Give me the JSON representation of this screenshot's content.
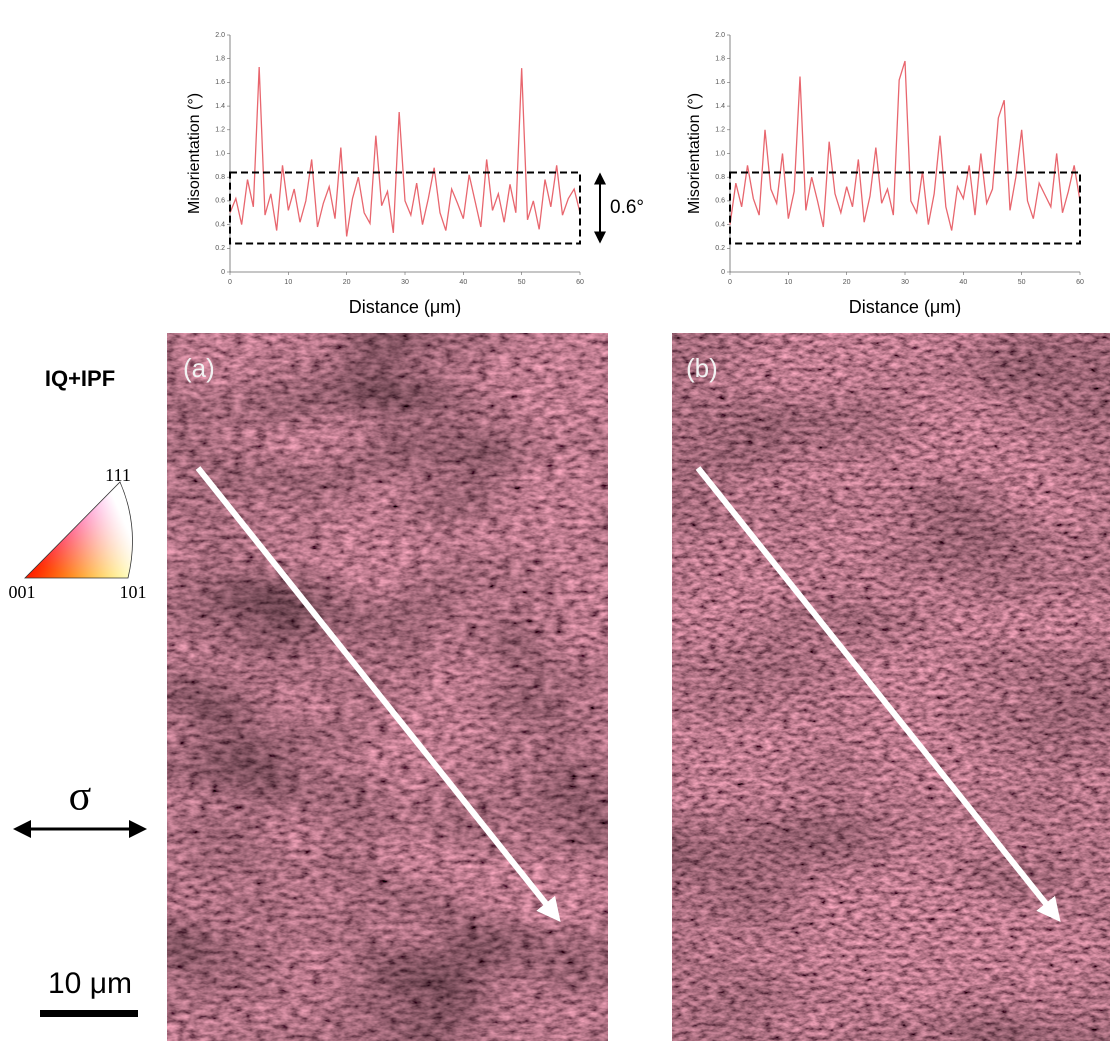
{
  "chart_data": [
    {
      "type": "line",
      "x_label": "Distance (μm)",
      "y_label": "Misorientation (°)",
      "x": [
        0,
        1,
        2,
        3,
        4,
        5,
        6,
        7,
        8,
        9,
        10,
        11,
        12,
        13,
        14,
        15,
        16,
        17,
        18,
        19,
        20,
        21,
        22,
        23,
        24,
        25,
        26,
        27,
        28,
        29,
        30,
        31,
        32,
        33,
        34,
        35,
        36,
        37,
        38,
        39,
        40,
        41,
        42,
        43,
        44,
        45,
        46,
        47,
        48,
        49,
        50,
        51,
        52,
        53,
        54,
        55,
        56,
        57,
        58,
        59,
        60
      ],
      "values": [
        0.5,
        0.62,
        0.4,
        0.78,
        0.55,
        1.73,
        0.48,
        0.66,
        0.35,
        0.9,
        0.52,
        0.7,
        0.42,
        0.6,
        0.95,
        0.38,
        0.58,
        0.72,
        0.45,
        1.05,
        0.3,
        0.62,
        0.8,
        0.5,
        0.41,
        1.15,
        0.56,
        0.68,
        0.33,
        1.35,
        0.6,
        0.48,
        0.75,
        0.4,
        0.62,
        0.88,
        0.5,
        0.35,
        0.7,
        0.58,
        0.45,
        0.82,
        0.6,
        0.38,
        0.95,
        0.52,
        0.66,
        0.42,
        0.74,
        0.5,
        1.72,
        0.44,
        0.6,
        0.36,
        0.78,
        0.55,
        0.9,
        0.48,
        0.62,
        0.7,
        0.5
      ],
      "color": "#e8666e",
      "xlim": [
        0,
        60
      ],
      "xticks": [
        0,
        10,
        20,
        30,
        40,
        50,
        60
      ],
      "ylim": [
        0,
        2
      ],
      "yticks": [
        0,
        0.2,
        0.4,
        0.6,
        0.8,
        {
          "value": 1,
          "label": "1.0"
        },
        1.2,
        1.4,
        1.6,
        1.8,
        {
          "value": 2,
          "label": "2.0"
        }
      ],
      "band": [
        0.24,
        0.84
      ],
      "annotation": "0.6°"
    },
    {
      "type": "line",
      "x_label": "Distance (μm)",
      "y_label": "Misorientation (°)",
      "x": [
        0,
        1,
        2,
        3,
        4,
        5,
        6,
        7,
        8,
        9,
        10,
        11,
        12,
        13,
        14,
        15,
        16,
        17,
        18,
        19,
        20,
        21,
        22,
        23,
        24,
        25,
        26,
        27,
        28,
        29,
        30,
        31,
        32,
        33,
        34,
        35,
        36,
        37,
        38,
        39,
        40,
        41,
        42,
        43,
        44,
        45,
        46,
        47,
        48,
        49,
        50,
        51,
        52,
        53,
        54,
        55,
        56,
        57,
        58,
        59,
        60
      ],
      "values": [
        0.4,
        0.75,
        0.55,
        0.9,
        0.62,
        0.48,
        1.2,
        0.7,
        0.58,
        1.0,
        0.45,
        0.68,
        1.65,
        0.52,
        0.8,
        0.6,
        0.38,
        1.1,
        0.66,
        0.5,
        0.72,
        0.55,
        0.95,
        0.42,
        0.64,
        1.05,
        0.58,
        0.7,
        0.48,
        1.62,
        1.78,
        0.6,
        0.5,
        0.85,
        0.4,
        0.66,
        1.15,
        0.55,
        0.35,
        0.72,
        0.62,
        0.9,
        0.48,
        1.0,
        0.58,
        0.7,
        1.3,
        1.45,
        0.52,
        0.8,
        1.2,
        0.6,
        0.45,
        0.75,
        0.65,
        0.55,
        1.0,
        0.5,
        0.68,
        0.9,
        0.6
      ],
      "color": "#e8666e",
      "xlim": [
        0,
        60
      ],
      "xticks": [
        0,
        10,
        20,
        30,
        40,
        50,
        60
      ],
      "ylim": [
        0,
        2
      ],
      "yticks": [
        0,
        0.2,
        0.4,
        0.6,
        0.8,
        {
          "value": 1,
          "label": "1.0"
        },
        1.2,
        1.4,
        1.6,
        1.8,
        {
          "value": 2,
          "label": "2.0"
        }
      ],
      "band": [
        0.24,
        0.84
      ]
    }
  ],
  "figure": {
    "map_label": "IQ+IPF",
    "panels": [
      "(a)",
      "(b)"
    ],
    "ipf": [
      "111",
      "001",
      "101"
    ],
    "stress": "σ",
    "scale_bar": "10 μm"
  }
}
